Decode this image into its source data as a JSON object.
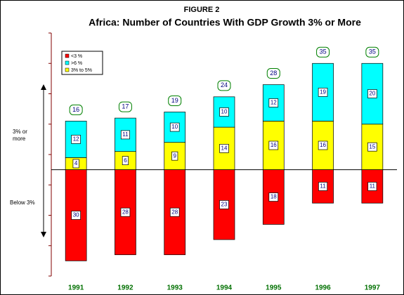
{
  "chart_data": {
    "type": "bar",
    "stacked": true,
    "figure_label": "FIGURE 2",
    "title": "Africa: Number of Countries With GDP Growth 3% or More",
    "upper_label": "3% or more",
    "lower_label": "Below 3%",
    "categories": [
      "1991",
      "1992",
      "1993",
      "1994",
      "1995",
      "1996",
      "1997"
    ],
    "series": [
      {
        "name": "<3 %",
        "color": "#ff0000",
        "values": [
          -30,
          -28,
          -28,
          -23,
          -18,
          -11,
          -11
        ],
        "value_labels": [
          "30",
          "28",
          "28",
          "23",
          "18",
          "11",
          "11"
        ]
      },
      {
        "name": ">6 %",
        "color": "#00ffff",
        "values": [
          12,
          11,
          10,
          10,
          12,
          19,
          20
        ]
      },
      {
        "name": "3% to 5%",
        "color": "#ffff00",
        "values": [
          4,
          6,
          9,
          14,
          16,
          16,
          15
        ]
      }
    ],
    "totals": [
      16,
      17,
      19,
      24,
      28,
      35,
      35
    ],
    "ylim": [
      -35,
      45
    ],
    "yticks": [
      -35,
      -25,
      -15,
      -5,
      5,
      15,
      25,
      35,
      45
    ]
  }
}
